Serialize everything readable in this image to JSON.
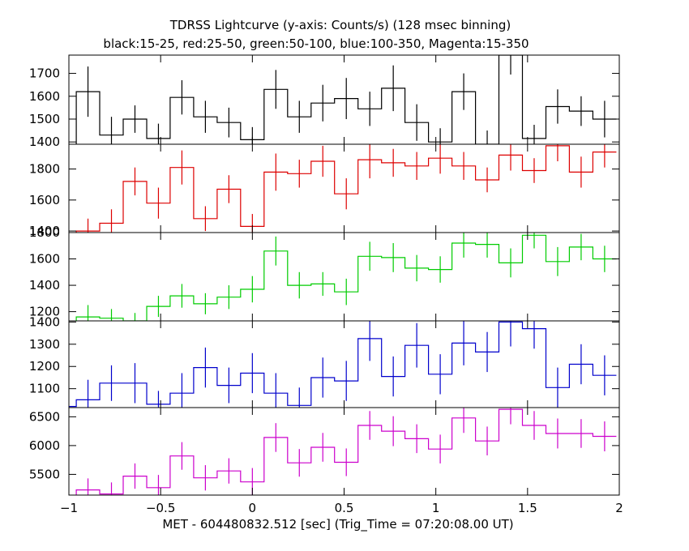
{
  "chart_data": {
    "type": "line",
    "title": "TDRSS Lightcurve (y-axis: Counts/s) (128 msec binning)",
    "subtitle": "black:15-25, red:25-50, green:50-100, blue:100-350, Magenta:15-350",
    "xlabel": "MET - 604480832.512 [sec] (Trig_Time = 07:20:08.00 UT)",
    "xlim": [
      -1,
      2
    ],
    "xticks": [
      -1,
      -0.5,
      0,
      0.5,
      1,
      1.5,
      2
    ],
    "xtick_labels": [
      "−1",
      "−0.5",
      "0",
      "0.5",
      "1",
      "1.5",
      "2"
    ],
    "bin_width": 0.128,
    "x_start": -1.088,
    "grid": false,
    "panels": [
      {
        "color": "#000000",
        "ylim": [
          1390,
          1780
        ],
        "yticks": [
          1400,
          1500,
          1600,
          1700
        ],
        "ytick_labels": [
          "1400",
          "1500",
          "1600",
          "1700"
        ],
        "values": [
          1360,
          1620,
          1430,
          1500,
          1415,
          1595,
          1510,
          1485,
          1410,
          1630,
          1510,
          1570,
          1590,
          1545,
          1635,
          1485,
          1400,
          1620,
          1390,
          1780,
          1415,
          1555,
          1535,
          1500
        ],
        "errors": [
          45,
          110,
          80,
          60,
          65,
          75,
          70,
          65,
          55,
          85,
          70,
          80,
          90,
          75,
          100,
          80,
          60,
          80,
          60,
          85,
          60,
          75,
          65,
          80
        ]
      },
      {
        "color": "#dd0000",
        "ylim": [
          1390,
          1960
        ],
        "yticks": [
          1400,
          1600,
          1800
        ],
        "ytick_labels": [
          "1400",
          "1600",
          "1800"
        ],
        "values": [
          1380,
          1400,
          1450,
          1720,
          1580,
          1810,
          1480,
          1670,
          1430,
          1780,
          1770,
          1850,
          1640,
          1860,
          1840,
          1820,
          1870,
          1820,
          1730,
          1890,
          1790,
          1950,
          1780,
          1910
        ],
        "errors": [
          45,
          80,
          90,
          90,
          100,
          110,
          80,
          90,
          80,
          120,
          90,
          100,
          100,
          120,
          90,
          90,
          100,
          90,
          80,
          100,
          80,
          100,
          100,
          100
        ]
      },
      {
        "color": "#00cc00",
        "ylim": [
          1130,
          1800
        ],
        "yticks": [
          1200,
          1400,
          1600,
          1800
        ],
        "ytick_labels": [
          "1200",
          "1400",
          "1600",
          "1800"
        ],
        "values": [
          1100,
          1160,
          1150,
          1130,
          1240,
          1320,
          1260,
          1310,
          1370,
          1660,
          1400,
          1410,
          1350,
          1620,
          1610,
          1530,
          1520,
          1720,
          1710,
          1570,
          1780,
          1580,
          1690,
          1600
        ],
        "errors": [
          40,
          90,
          70,
          60,
          80,
          90,
          80,
          90,
          100,
          110,
          100,
          90,
          100,
          110,
          110,
          100,
          100,
          110,
          100,
          110,
          100,
          110,
          100,
          100
        ]
      },
      {
        "color": "#0000cc",
        "ylim": [
          1015,
          1405
        ],
        "yticks": [
          1100,
          1200,
          1300,
          1400
        ],
        "ytick_labels": [
          "1100",
          "1200",
          "1300",
          "1400"
        ],
        "values": [
          1020,
          1050,
          1125,
          1125,
          1030,
          1080,
          1195,
          1115,
          1170,
          1080,
          1025,
          1150,
          1135,
          1325,
          1155,
          1295,
          1165,
          1305,
          1265,
          1400,
          1370,
          1105,
          1210,
          1160
        ],
        "errors": [
          30,
          90,
          80,
          90,
          60,
          90,
          90,
          80,
          90,
          90,
          80,
          90,
          90,
          100,
          90,
          100,
          90,
          100,
          90,
          110,
          90,
          90,
          90,
          90
        ]
      },
      {
        "color": "#cc00cc",
        "ylim": [
          5140,
          6660
        ],
        "yticks": [
          5500,
          6000,
          6500
        ],
        "ytick_labels": [
          "5500",
          "6000",
          "6500"
        ],
        "values": [
          5100,
          5230,
          5160,
          5470,
          5270,
          5820,
          5440,
          5560,
          5370,
          6140,
          5700,
          5970,
          5710,
          6350,
          6250,
          6120,
          5940,
          6480,
          6080,
          6630,
          6350,
          6210,
          6210,
          6160
        ],
        "errors": [
          80,
          200,
          200,
          220,
          220,
          240,
          220,
          220,
          240,
          250,
          240,
          250,
          240,
          250,
          260,
          250,
          250,
          260,
          250,
          260,
          250,
          260,
          250,
          260
        ]
      }
    ]
  }
}
